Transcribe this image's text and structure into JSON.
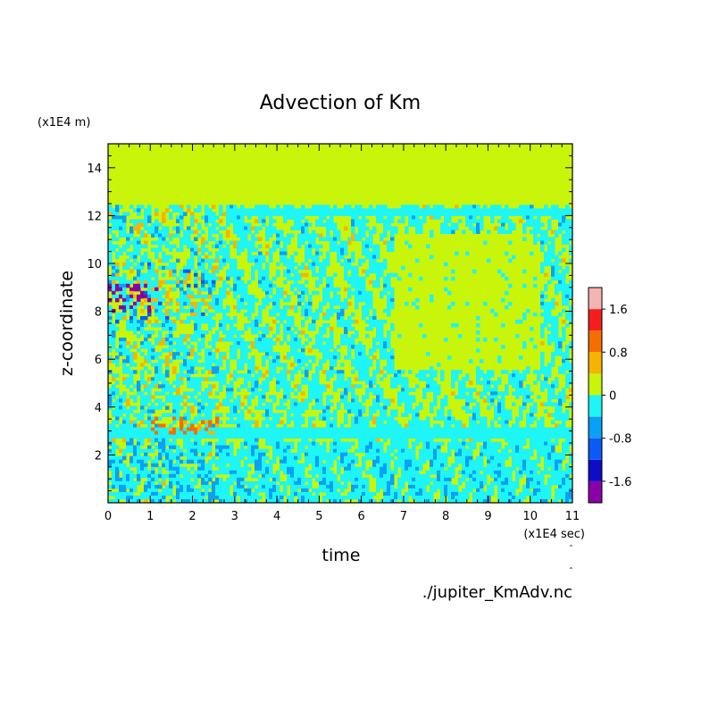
{
  "chart_data": {
    "type": "heatmap",
    "title": "Advection of Km",
    "xlabel": "time",
    "ylabel": "z-coordinate",
    "x_unit": "(x1E4 sec)",
    "y_unit": "(x1E4 m)",
    "xlim": [
      0,
      11
    ],
    "ylim": [
      0,
      15
    ],
    "x_ticks": [
      0,
      1,
      2,
      3,
      4,
      5,
      6,
      7,
      8,
      9,
      10,
      11
    ],
    "y_ticks": [
      2,
      4,
      6,
      8,
      10,
      12,
      14
    ],
    "colorbar": {
      "levels": [
        -2.0,
        -1.6,
        -1.2,
        -0.8,
        -0.4,
        0,
        0.4,
        0.8,
        1.2,
        1.6,
        2.0
      ],
      "colors": [
        "#8a00a8",
        "#0d0dc8",
        "#0a5af5",
        "#0aa0f5",
        "#1ef5f5",
        "#c8f50a",
        "#f5b400",
        "#f56e00",
        "#f51e1e",
        "#f5b4b4"
      ],
      "tick_labels": [
        "1.6",
        "0.8",
        "0",
        "-0.8",
        "-1.6"
      ],
      "tick_values": [
        1.6,
        0.8,
        0,
        -0.8,
        -1.6
      ]
    },
    "features": [
      {
        "region": "upper layer",
        "z_range": [
          12.3,
          15
        ],
        "value": "0"
      },
      {
        "region": "band",
        "z": 12.1,
        "t_range": [
          3,
          11
        ],
        "value": "-0.4 to 0"
      },
      {
        "region": "band",
        "z": 3.0,
        "t_range": [
          0,
          11
        ],
        "value": "-0.4 to 0"
      },
      {
        "region": "quiet zone",
        "t_range": [
          7,
          10
        ],
        "z_range": [
          5.5,
          11
        ],
        "value": "0"
      },
      {
        "region": "active early",
        "t_range": [
          0,
          2.5
        ],
        "z_range": [
          0,
          12.5
        ],
        "value": "-1.6 to 1.6"
      }
    ]
  },
  "file_label": "./jupiter_KmAdv.nc"
}
